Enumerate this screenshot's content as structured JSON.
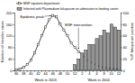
{
  "chart_data": {
    "type": "line",
    "categories": [
      "36",
      null,
      "38",
      null,
      "40",
      null,
      "42",
      null,
      "44",
      null,
      "46",
      null,
      "48",
      null,
      "50",
      null,
      "52",
      null,
      "2",
      null,
      "4",
      null,
      "6",
      null,
      "8",
      null,
      "10",
      null,
      "12"
    ],
    "series": [
      {
        "name": "MSF inpatient department",
        "type": "line",
        "marker": "square",
        "color": "#000000",
        "values": [
          2,
          5,
          10,
          20,
          35,
          60,
          90,
          120,
          150,
          175,
          190,
          185,
          160,
          140,
          120,
          95,
          80,
          65,
          55,
          40,
          30,
          25,
          18,
          12,
          10,
          8,
          6,
          5,
          4
        ]
      },
      {
        "name": "Infected with Plasmodium falciparum on admission to feeding center",
        "type": "bar",
        "axis": "y2",
        "color": "#999999",
        "values": [
          null,
          null,
          null,
          null,
          null,
          null,
          null,
          null,
          null,
          null,
          null,
          null,
          null,
          null,
          null,
          null,
          10,
          20,
          30,
          35,
          45,
          45,
          55,
          60,
          70,
          65,
          80,
          75,
          70
        ]
      }
    ],
    "ylabel": "Number of measles cases",
    "y2label": "% P. falciparum positive",
    "xlabels": [
      "Week in 2003",
      "Week in 2004"
    ],
    "ylim": [
      0,
      200
    ],
    "yticks": [
      0,
      40,
      80,
      120,
      160,
      200
    ],
    "y2lim": [
      0,
      100
    ],
    "y2ticks": [
      0,
      20,
      40,
      60,
      80,
      100
    ],
    "annotations": [
      {
        "text": "Epidemic peak",
        "x": 10
      },
      {
        "text": "MSF intervention",
        "x": 17
      }
    ]
  }
}
